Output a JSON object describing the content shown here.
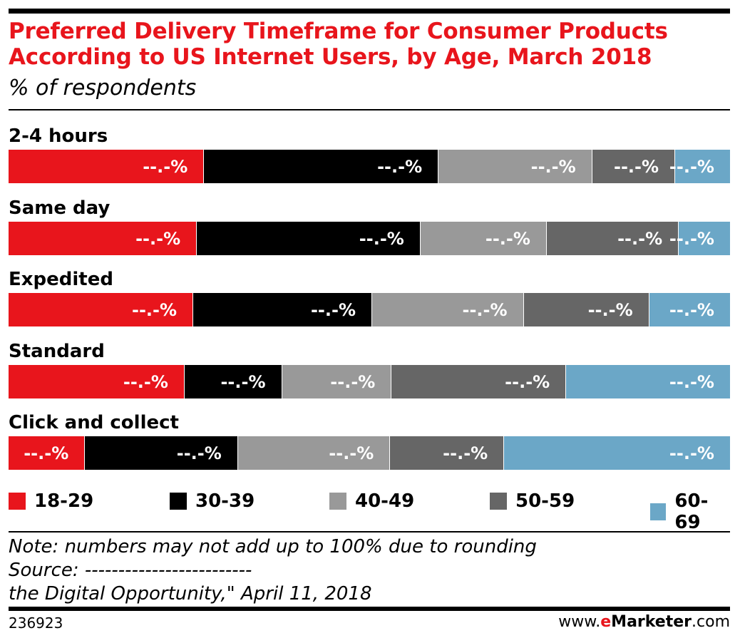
{
  "chart_data": {
    "type": "bar",
    "orientation": "horizontal",
    "stacked": true,
    "title": "Preferred Delivery Timeframe for Consumer Products According to US Internet Users, by Age, March 2018",
    "subtitle": "% of respondents",
    "categories": [
      "2-4 hours",
      "Same day",
      "Expedited",
      "Standard",
      "Click and collect"
    ],
    "series": [
      {
        "name": "18-29",
        "color": "#e8151c",
        "values": [
          27,
          26,
          25.5,
          24.3,
          10.5
        ],
        "labels": [
          "--.-%",
          "--.-%",
          "--.-%",
          "--.-%",
          "--.-%"
        ]
      },
      {
        "name": "30-39",
        "color": "#000000",
        "values": [
          32.5,
          31,
          24.8,
          13.5,
          21.2
        ],
        "labels": [
          "--.-%",
          "--.-%",
          "--.-%",
          "--.-%",
          "--.-%"
        ]
      },
      {
        "name": "40-49",
        "color": "#999999",
        "values": [
          21.3,
          17.5,
          21,
          15.2,
          21.1
        ],
        "labels": [
          "--.-%",
          "--.-%",
          "--.-%",
          "--.-%",
          "--.-%"
        ]
      },
      {
        "name": "50-59",
        "color": "#666666",
        "values": [
          11.5,
          18.3,
          17.4,
          24.2,
          15.8
        ],
        "labels": [
          "--.-%",
          "--.-%",
          "--.-%",
          "--.-%",
          "--.-%"
        ]
      },
      {
        "name": "60-69",
        "color": "#6ba7c7",
        "values": [
          7.7,
          7.2,
          11.3,
          22.8,
          31.4
        ],
        "labels": [
          "--.-%",
          "--.-%",
          "--.-%",
          "--.-%",
          "--.-%"
        ]
      }
    ],
    "xlim": [
      0,
      100
    ],
    "legend": "bottom"
  },
  "notes": {
    "note": "Note: numbers may not add up to 100% due to rounding",
    "source": "Source: -------------------------",
    "source_cont": "the Digital Opportunity,\" April 11, 2018"
  },
  "footer": {
    "chart_id": "236923",
    "brand_prefix": "www.",
    "brand_e": "e",
    "brand_marketer": "Marketer",
    "brand_suffix": ".com"
  }
}
